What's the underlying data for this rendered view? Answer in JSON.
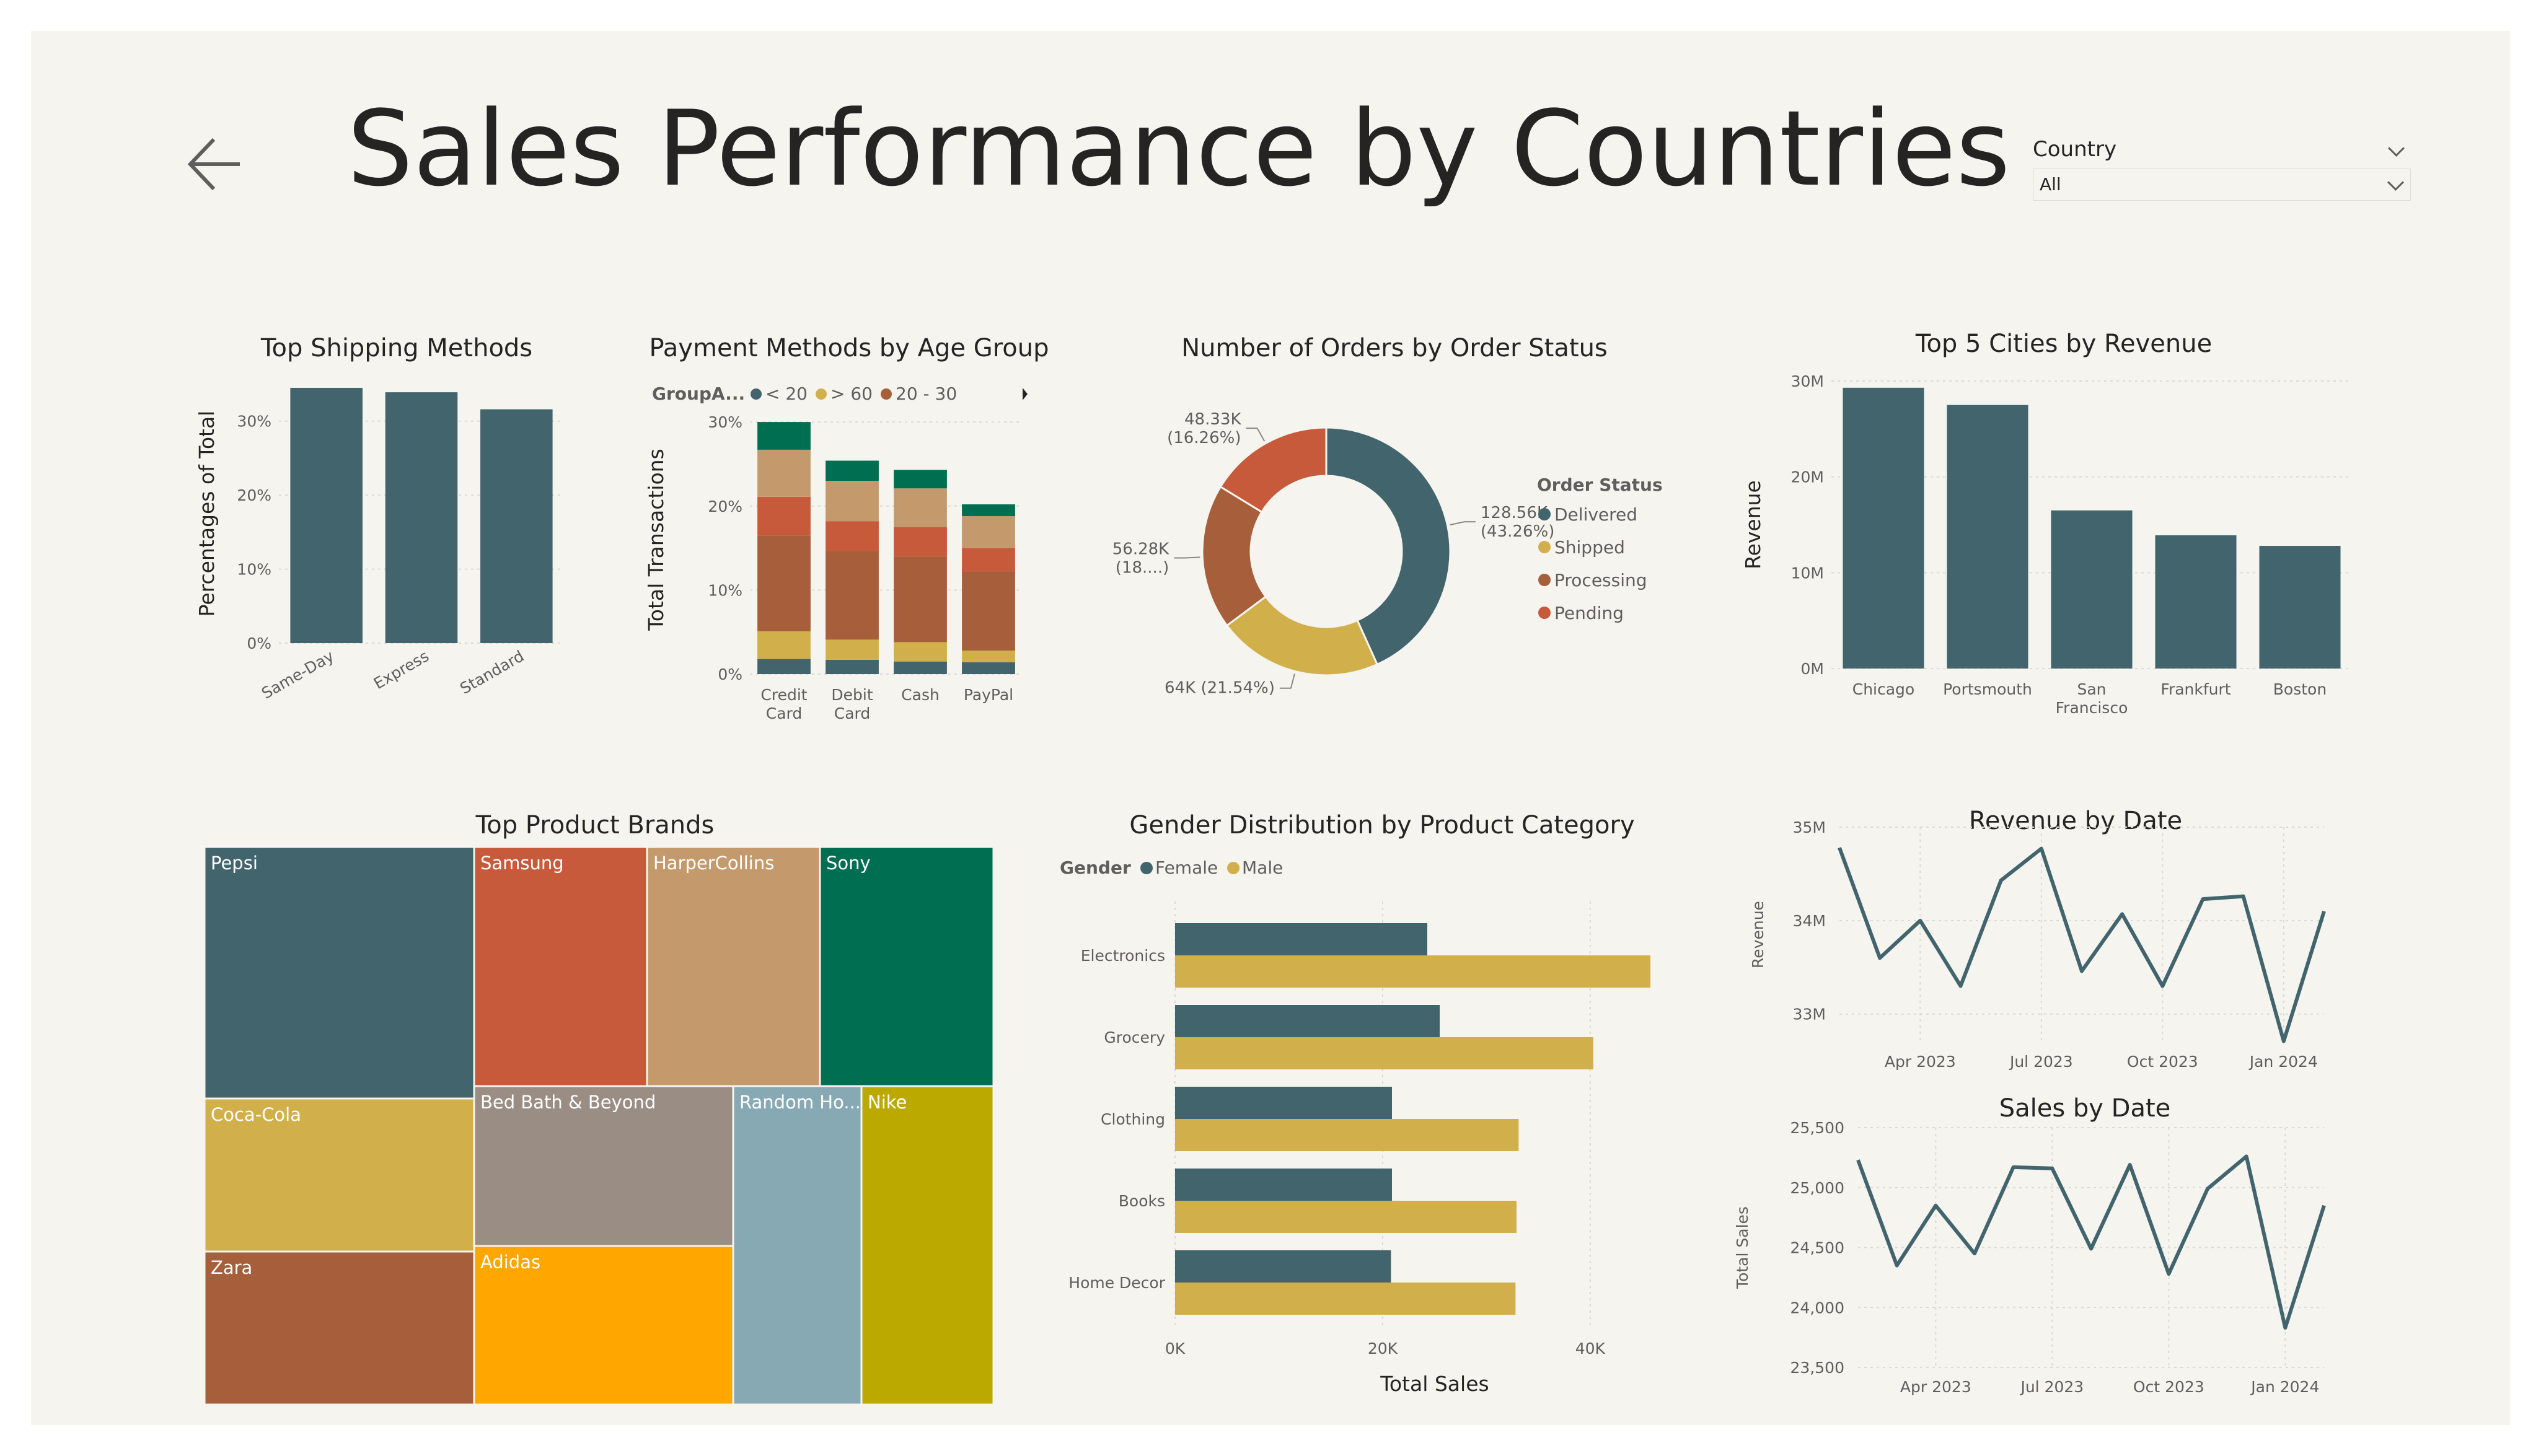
{
  "header": {
    "title": "Sales Performance by Countries",
    "back_icon": "arrow-left-icon",
    "slicer": {
      "label": "Country",
      "value": "All"
    }
  },
  "colors": {
    "background": "#f6f4ef",
    "teal": "#41646d",
    "gold": "#d1b04c",
    "brown": "#a65f3a",
    "red": "#c85a3c",
    "tan": "#c49a6c",
    "green": "#006e51"
  },
  "chart_data": [
    {
      "id": "shipping",
      "type": "bar",
      "title": "Top Shipping Methods",
      "ylabel": "Percentages of Total",
      "categories": [
        "Same-Day",
        "Express",
        "Standard"
      ],
      "values": [
        34.5,
        33.9,
        31.6
      ],
      "ylim": [
        0,
        35
      ],
      "yticks": [
        {
          "v": 0,
          "label": "0%"
        },
        {
          "v": 10,
          "label": "10%"
        },
        {
          "v": 20,
          "label": "20%"
        },
        {
          "v": 30,
          "label": "30%"
        }
      ]
    },
    {
      "id": "payment",
      "type": "bar",
      "stacked": true,
      "title": "Payment Methods by Age Group",
      "ylabel": "Total Transactions",
      "legend_title": "GroupA...",
      "legend": [
        {
          "name": "< 20",
          "color": "#41646d"
        },
        {
          "name": "> 60",
          "color": "#d1b04c"
        },
        {
          "name": "20 - 30",
          "color": "#a65f3a"
        }
      ],
      "categories": [
        [
          "Credit",
          "Card"
        ],
        [
          "Debit",
          "Card"
        ],
        [
          "Cash"
        ],
        [
          "PayPal"
        ]
      ],
      "series": [
        {
          "color": "#41646d",
          "values": [
            1.8,
            1.7,
            1.5,
            1.4
          ]
        },
        {
          "color": "#d1b04c",
          "values": [
            3.3,
            2.4,
            2.3,
            1.4
          ]
        },
        {
          "color": "#a65f3a",
          "values": [
            11.4,
            10.5,
            10.2,
            9.4
          ]
        },
        {
          "color": "#c85a3c",
          "values": [
            4.6,
            3.6,
            3.5,
            2.8
          ]
        },
        {
          "color": "#c49a6c",
          "values": [
            5.6,
            4.8,
            4.6,
            3.8
          ]
        },
        {
          "color": "#006e51",
          "values": [
            3.3,
            2.4,
            2.2,
            1.4
          ]
        }
      ],
      "ylim": [
        0,
        32
      ],
      "yticks": [
        {
          "v": 0,
          "label": "0%"
        },
        {
          "v": 10,
          "label": "10%"
        },
        {
          "v": 20,
          "label": "20%"
        },
        {
          "v": 30,
          "label": "30%"
        }
      ]
    },
    {
      "id": "orders",
      "type": "pie",
      "donut": true,
      "title": "Number of Orders by Order Status",
      "legend_title": "Order Status",
      "slices": [
        {
          "name": "Delivered",
          "value": 128.56,
          "color": "#41646d",
          "label": [
            "128.56K",
            "(43.26%)"
          ]
        },
        {
          "name": "Shipped",
          "value": 64.0,
          "color": "#d1b04c",
          "label": [
            "64K (21.54%)"
          ]
        },
        {
          "name": "Processing",
          "value": 56.28,
          "color": "#a65f3a",
          "label": [
            "56.28K",
            "(18....)"
          ]
        },
        {
          "name": "Pending",
          "value": 48.33,
          "color": "#c85a3c",
          "label": [
            "48.33K",
            "(16.26%)"
          ]
        }
      ]
    },
    {
      "id": "cities",
      "type": "bar",
      "title": "Top 5 Cities by Revenue",
      "ylabel": "Revenue",
      "categories": [
        [
          "Chicago"
        ],
        [
          "Portsmouth"
        ],
        [
          "San",
          "Francisco"
        ],
        [
          "Frankfurt"
        ],
        [
          "Boston"
        ]
      ],
      "values": [
        29.3,
        27.5,
        16.5,
        13.9,
        12.8
      ],
      "ylim": [
        0,
        30
      ],
      "yticks": [
        {
          "v": 0,
          "label": "0M"
        },
        {
          "v": 10,
          "label": "10M"
        },
        {
          "v": 20,
          "label": "20M"
        },
        {
          "v": 30,
          "label": "30M"
        }
      ]
    },
    {
      "id": "brands",
      "type": "treemap",
      "title": "Top Product Brands",
      "items": [
        {
          "name": "Pepsi",
          "color": "#41646d"
        },
        {
          "name": "Samsung",
          "color": "#c85a3c"
        },
        {
          "name": "HarperCollins",
          "color": "#c49a6c"
        },
        {
          "name": "Sony",
          "color": "#006e51"
        },
        {
          "name": "Coca-Cola",
          "color": "#d1b04c"
        },
        {
          "name": "Bed Bath & Beyond",
          "color": "#9a8e84"
        },
        {
          "name": "Random Ho...",
          "color": "#87a9b4"
        },
        {
          "name": "Nike",
          "color": "#bca900"
        },
        {
          "name": "Zara",
          "color": "#a65f3a"
        },
        {
          "name": "Adidas",
          "color": "#ffa600"
        }
      ]
    },
    {
      "id": "gender",
      "type": "bar",
      "orientation": "horizontal",
      "title": "Gender Distribution by Product Category",
      "xlabel": "Total Sales",
      "legend_title": "Gender",
      "categories": [
        "Electronics",
        "Grocery",
        "Clothing",
        "Books",
        "Home Decor"
      ],
      "series": [
        {
          "name": "Female",
          "color": "#41646d",
          "values": [
            24300,
            25500,
            20900,
            20900,
            20800
          ]
        },
        {
          "name": "Male",
          "color": "#d1b04c",
          "values": [
            45800,
            40300,
            33100,
            32900,
            32800
          ]
        }
      ],
      "xlim": [
        0,
        45800
      ],
      "xticks": [
        {
          "v": 0,
          "label": "0K"
        },
        {
          "v": 20000,
          "label": "20K"
        },
        {
          "v": 40000,
          "label": "40K"
        }
      ]
    },
    {
      "id": "revenue",
      "type": "line",
      "title": "Revenue by Date",
      "ylabel": "Revenue",
      "x": [
        "2023-02",
        "2023-03",
        "2023-04",
        "2023-05",
        "2023-06",
        "2023-07",
        "2023-08",
        "2023-09",
        "2023-10",
        "2023-11",
        "2023-12",
        "2024-01",
        "2024-02"
      ],
      "values": [
        34.78,
        33.6,
        34.0,
        33.3,
        34.43,
        34.77,
        33.46,
        34.07,
        33.3,
        34.23,
        34.26,
        32.71,
        34.1
      ],
      "ylim": [
        32.7,
        35.0
      ],
      "yticks": [
        {
          "v": 33,
          "label": "33M"
        },
        {
          "v": 34,
          "label": "34M"
        },
        {
          "v": 35,
          "label": "35M"
        }
      ],
      "xticks": [
        {
          "i": 2,
          "label": "Apr 2023"
        },
        {
          "i": 5,
          "label": "Jul 2023"
        },
        {
          "i": 8,
          "label": "Oct 2023"
        },
        {
          "i": 11,
          "label": "Jan 2024"
        }
      ]
    },
    {
      "id": "sales",
      "type": "line",
      "title": "Sales by Date",
      "ylabel": "Total Sales",
      "x": [
        "2023-02",
        "2023-03",
        "2023-04",
        "2023-05",
        "2023-06",
        "2023-07",
        "2023-08",
        "2023-09",
        "2023-10",
        "2023-11",
        "2023-12",
        "2024-01",
        "2024-02"
      ],
      "values": [
        25230,
        24350,
        24850,
        24450,
        25170,
        25160,
        24490,
        25190,
        24280,
        24990,
        25260,
        23830,
        24850
      ],
      "ylim": [
        23500,
        25500
      ],
      "yticks": [
        {
          "v": 23500,
          "label": "23,500"
        },
        {
          "v": 24000,
          "label": "24,000"
        },
        {
          "v": 24500,
          "label": "24,500"
        },
        {
          "v": 25000,
          "label": "25,000"
        },
        {
          "v": 25500,
          "label": "25,500"
        }
      ],
      "xticks": [
        {
          "i": 2,
          "label": "Apr 2023"
        },
        {
          "i": 5,
          "label": "Jul 2023"
        },
        {
          "i": 8,
          "label": "Oct 2023"
        },
        {
          "i": 11,
          "label": "Jan 2024"
        }
      ]
    }
  ]
}
